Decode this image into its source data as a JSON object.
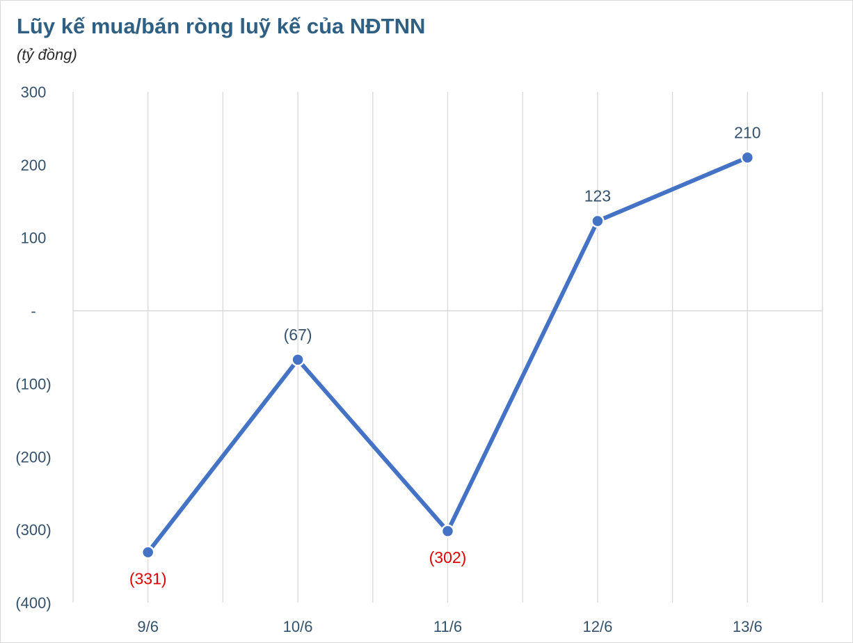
{
  "title": "Lũy kế mua/bán ròng luỹ kế của NĐTNN",
  "subtitle": "(tỷ đồng)",
  "colors": {
    "line": "#4472c4",
    "title": "#2f5f83",
    "negative_label": "#e00000",
    "positive_label": "#34526d",
    "grid": "#d9d9d9"
  },
  "chart_data": {
    "type": "line",
    "title": "Lũy kế mua/bán ròng luỹ kế của NĐTNN",
    "subtitle": "(tỷ đồng)",
    "categories": [
      "9/6",
      "10/6",
      "11/6",
      "12/6",
      "13/6"
    ],
    "series": [
      {
        "values": [
          -331,
          -67,
          -302,
          123,
          210
        ]
      }
    ],
    "data_labels": [
      "(331)",
      "(67)",
      "(302)",
      "123",
      "210"
    ],
    "y_ticks": [
      {
        "value": 300,
        "label": "300"
      },
      {
        "value": 200,
        "label": "200"
      },
      {
        "value": 100,
        "label": "100"
      },
      {
        "value": 0,
        "label": "-"
      },
      {
        "value": -100,
        "label": "(100)"
      },
      {
        "value": -200,
        "label": "(200)"
      },
      {
        "value": -300,
        "label": "(300)"
      },
      {
        "value": -400,
        "label": "(400)"
      }
    ],
    "ylim": [
      -400,
      300
    ],
    "grid": true,
    "xlabel": "",
    "ylabel": ""
  }
}
